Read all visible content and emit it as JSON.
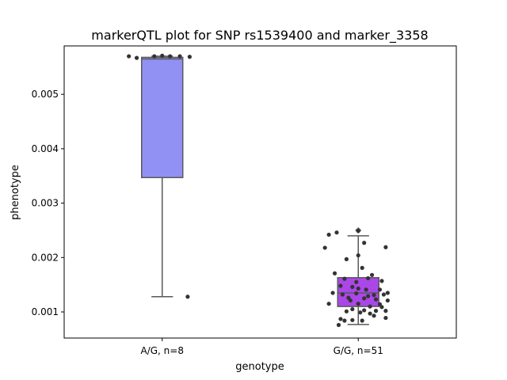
{
  "chart_data": {
    "type": "box",
    "title": "markerQTL plot for SNP rs1539400 and marker_3358",
    "xlabel": "genotype",
    "ylabel": "phenotype",
    "categories": [
      "A/G, n=8",
      "G/G, n=51"
    ],
    "ylim": [
      0.00052,
      0.00589
    ],
    "yticks": [
      0.001,
      0.002,
      0.003,
      0.004,
      0.005
    ],
    "ytick_labels": [
      "0.001",
      "0.002",
      "0.003",
      "0.004",
      "0.005"
    ],
    "boxes": [
      {
        "category": "A/G, n=8",
        "color": "#9191f4",
        "whisker_low": 0.00128,
        "q1": 0.00347,
        "median": 0.00565,
        "q3": 0.00568,
        "whisker_high": 0.0057,
        "outliers": [],
        "points": [
          [
            -0.17,
            0.0057
          ],
          [
            -0.13,
            0.00567
          ],
          [
            -0.04,
            0.0057
          ],
          [
            0.0,
            0.00571
          ],
          [
            0.04,
            0.0057
          ],
          [
            0.09,
            0.0057
          ],
          [
            0.14,
            0.00569
          ],
          [
            0.13,
            0.00128
          ]
        ]
      },
      {
        "category": "G/G, n=51",
        "color": "#ab47e8",
        "whisker_low": 0.00077,
        "q1": 0.0011,
        "median": 0.00135,
        "q3": 0.00163,
        "whisker_high": 0.0024,
        "outliers": [
          0.0025
        ],
        "points": [
          [
            -0.11,
            0.00246
          ],
          [
            -0.15,
            0.00242
          ],
          [
            0.0,
            0.00249
          ],
          [
            0.14,
            0.00219
          ],
          [
            -0.17,
            0.00218
          ],
          [
            0.03,
            0.00227
          ],
          [
            -0.06,
            0.00197
          ],
          [
            0.0,
            0.00204
          ],
          [
            0.02,
            0.00181
          ],
          [
            -0.12,
            0.00171
          ],
          [
            0.07,
            0.00168
          ],
          [
            -0.07,
            0.00161
          ],
          [
            0.05,
            0.00162
          ],
          [
            0.12,
            0.00157
          ],
          [
            -0.09,
            0.00148
          ],
          [
            -0.03,
            0.00146
          ],
          [
            0.0,
            0.00143
          ],
          [
            0.04,
            0.00141
          ],
          [
            0.11,
            0.00141
          ],
          [
            0.15,
            0.00135
          ],
          [
            -0.13,
            0.00135
          ],
          [
            -0.01,
            0.00134
          ],
          [
            0.08,
            0.00131
          ],
          [
            0.13,
            0.00132
          ],
          [
            -0.08,
            0.00132
          ],
          [
            -0.05,
            0.00126
          ],
          [
            0.03,
            0.00125
          ],
          [
            0.09,
            0.00123
          ],
          [
            -0.04,
            0.00121
          ],
          [
            0.15,
            0.00121
          ],
          [
            -0.15,
            0.00115
          ],
          [
            0.0,
            0.00115
          ],
          [
            0.06,
            0.0011
          ],
          [
            0.12,
            0.00109
          ],
          [
            -0.03,
            0.00105
          ],
          [
            0.03,
            0.00103
          ],
          [
            0.09,
            0.00102
          ],
          [
            0.14,
            0.00102
          ],
          [
            -0.06,
            0.00101
          ],
          [
            0.01,
            0.00099
          ],
          [
            0.06,
            0.00097
          ],
          [
            -0.09,
            0.00087
          ],
          [
            -0.07,
            0.00084
          ],
          [
            0.02,
            0.00084
          ],
          [
            0.14,
            0.00089
          ],
          [
            -0.1,
            0.00076
          ],
          [
            -0.03,
            0.00085
          ],
          [
            0.08,
            0.00093
          ],
          [
            0.11,
            0.00114
          ],
          [
            -0.01,
            0.00155
          ],
          [
            0.05,
            0.00129
          ]
        ]
      }
    ],
    "grid": false,
    "legend": "none"
  }
}
